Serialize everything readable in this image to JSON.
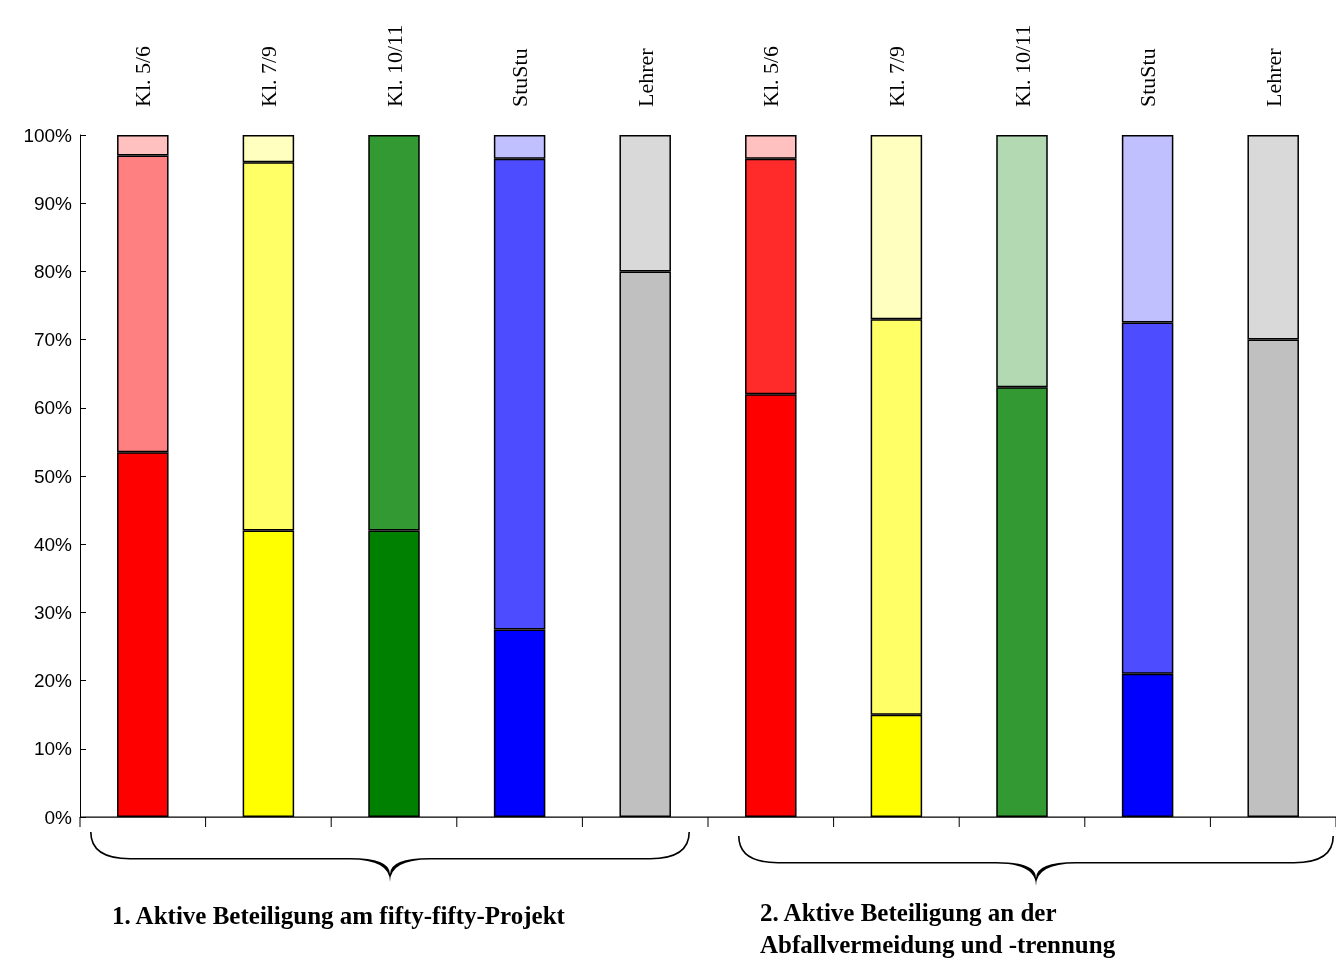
{
  "chart_data": {
    "type": "bar",
    "stacked": true,
    "categories": [
      "Kl. 5/6",
      "Kl. 7/9",
      "Kl. 10/11",
      "StuStu",
      "Lehrer",
      "Kl. 5/6",
      "Kl. 7/9",
      "Kl. 10/11",
      "StuStu",
      "Lehrer"
    ],
    "series": [
      {
        "colors": [
          "#ff0000",
          "#ffff00",
          "#008000",
          "#0000ff",
          "#c0c0c0",
          "#ff0000",
          "#ffff00",
          "#008000",
          "#0000ff",
          "#c0c0c0"
        ],
        "values": [
          53.5,
          42,
          42,
          27.5,
          80,
          62,
          15,
          0,
          21,
          70
        ]
      },
      {
        "colors": [
          "#ff8080",
          "#ffff66",
          "#339933",
          "#4d4dff",
          "#c0c0c0",
          "#ff2a2a",
          "#ffff66",
          "#339933",
          "#4d4dff",
          "#c0c0c0"
        ],
        "values": [
          43.5,
          54,
          58,
          69,
          0,
          34.5,
          58,
          63,
          51.5,
          0
        ]
      },
      {
        "colors": [
          "#ffc0c0",
          "#ffffc0",
          "#b3d9b3",
          "#c0c0ff",
          "#d9d9d9",
          "#ffc0c0",
          "#ffffc0",
          "#b3d9b3",
          "#c0c0ff",
          "#d9d9d9"
        ],
        "values": [
          3,
          4,
          0,
          3.5,
          20,
          3.5,
          27,
          37,
          27.5,
          30
        ]
      }
    ],
    "ylim": [
      0,
      100
    ],
    "yticks": [
      {
        "value": 0,
        "label": "0%"
      },
      {
        "value": 10,
        "label": "10%"
      },
      {
        "value": 20,
        "label": "20%"
      },
      {
        "value": 30,
        "label": "30%"
      },
      {
        "value": 40,
        "label": "40%"
      },
      {
        "value": 50,
        "label": "50%"
      },
      {
        "value": 60,
        "label": "60%"
      },
      {
        "value": 70,
        "label": "70%"
      },
      {
        "value": 80,
        "label": "80%"
      },
      {
        "value": 90,
        "label": "90%"
      },
      {
        "value": 100,
        "label": "100%"
      }
    ],
    "grid": false,
    "annotations": [
      "1. Aktive Beteiligung am fifty-fifty-Projekt",
      "2. Aktive Beteiligung an der Abfallvermeidung und -trennung"
    ]
  }
}
